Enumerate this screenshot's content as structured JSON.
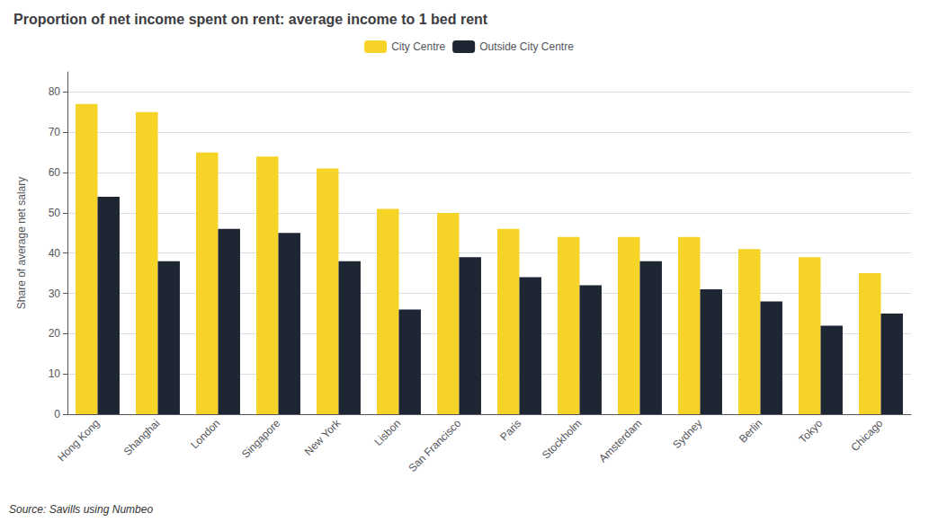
{
  "chart_data": {
    "type": "bar",
    "title": "Proportion of net income spent on rent: average income to 1 bed rent",
    "ylabel": "Share of average net salary",
    "categories": [
      "Hong Kong",
      "Shanghai",
      "London",
      "Singapore",
      "New York",
      "Lisbon",
      "San Francisco",
      "Paris",
      "Stockholm",
      "Amsterdam",
      "Sydney",
      "Berlin",
      "Tokyo",
      "Chicago"
    ],
    "series": [
      {
        "name": "City Centre",
        "color": "#f5d327",
        "values": [
          77,
          75,
          65,
          64,
          61,
          51,
          50,
          46,
          44,
          44,
          44,
          41,
          39,
          35
        ]
      },
      {
        "name": "Outside City Centre",
        "color": "#1e2533",
        "values": [
          54,
          38,
          46,
          45,
          38,
          26,
          39,
          34,
          32,
          38,
          31,
          28,
          22,
          25
        ]
      }
    ],
    "ylim": [
      0,
      85
    ],
    "yticks": [
      0,
      10,
      20,
      30,
      40,
      50,
      60,
      70,
      80
    ],
    "grid": true,
    "legend": "top",
    "annotations": [
      "Source: Savills using Numbeo"
    ]
  }
}
